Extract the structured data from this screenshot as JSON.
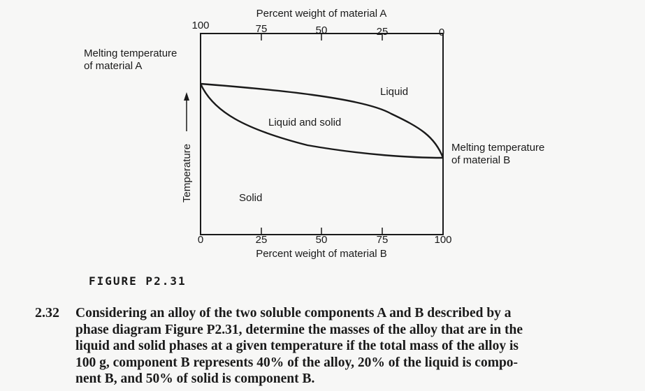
{
  "diagram": {
    "top_axis": {
      "label": "Percent weight of material A",
      "ticks": [
        "100",
        "75",
        "50",
        "25",
        "0"
      ]
    },
    "bottom_axis": {
      "label": "Percent weight of material B",
      "ticks": [
        "0",
        "25",
        "50",
        "75",
        "100"
      ]
    },
    "y_axis_label": "Temperature",
    "left_annotation": [
      "Melting temperature",
      "of material A"
    ],
    "right_annotation": [
      "Melting temperature",
      "of material B"
    ],
    "region_labels": {
      "liquid": "Liquid",
      "liquid_and_solid": "Liquid and solid",
      "solid": "Solid"
    }
  },
  "figure_caption": "FIGURE P2.31",
  "problem": {
    "number": "2.32",
    "lines": [
      "Considering an alloy of the two soluble components A and B described by a",
      "phase diagram Figure P2.31, determine the masses of the alloy that are in the",
      "liquid and solid phases at a given temperature if the total mass of the alloy is",
      "100 g, component B represents 40% of the alloy, 20% of the liquid is compo-",
      "nent B, and 50% of solid is component B."
    ]
  }
}
